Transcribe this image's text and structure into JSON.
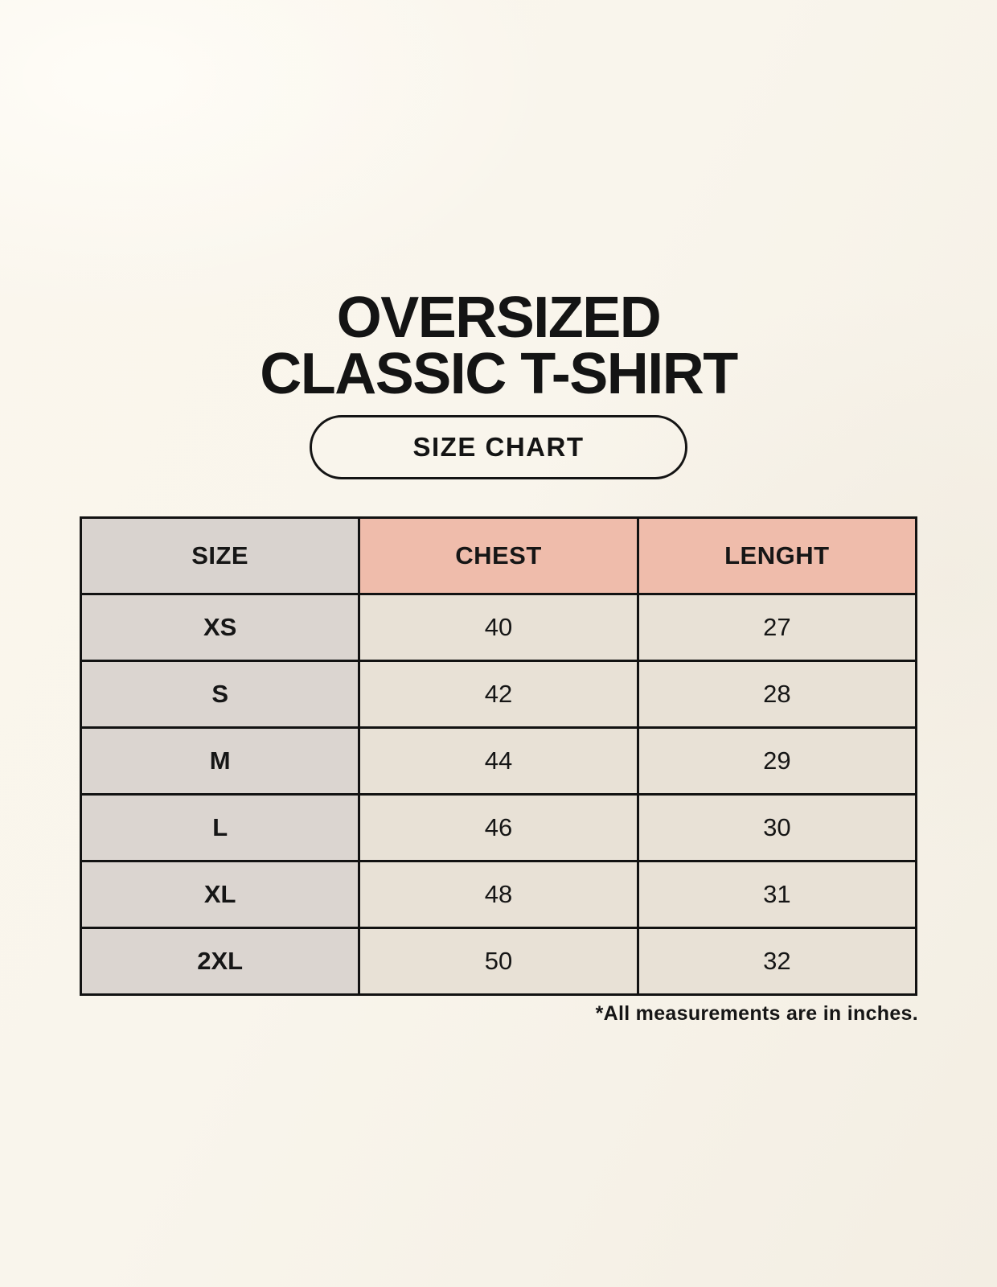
{
  "page": {
    "title_line1": "OVERSIZED",
    "title_line2": "CLASSIC T-SHIRT",
    "button_label": "SIZE CHART",
    "footnote": "*All measurements are in inches."
  },
  "chart_data": {
    "type": "table",
    "title": "OVERSIZED CLASSIC T-SHIRT",
    "columns": [
      "SIZE",
      "CHEST",
      "LENGHT"
    ],
    "rows": [
      [
        "XS",
        "40",
        "27"
      ],
      [
        "S",
        "42",
        "28"
      ],
      [
        "M",
        "44",
        "29"
      ],
      [
        "L",
        "46",
        "30"
      ],
      [
        "XL",
        "48",
        "31"
      ],
      [
        "2XL",
        "50",
        "32"
      ]
    ],
    "units_note": "*All measurements are in inches.",
    "legend": "none",
    "grid": "full black borders"
  },
  "colors": {
    "background": "#f9f5ec",
    "accent_salmon": "#efbcab",
    "size_column_gray": "#dbd5d0",
    "value_cell_beige": "#e8e1d6",
    "border_black": "#121212",
    "text": "#141414"
  }
}
